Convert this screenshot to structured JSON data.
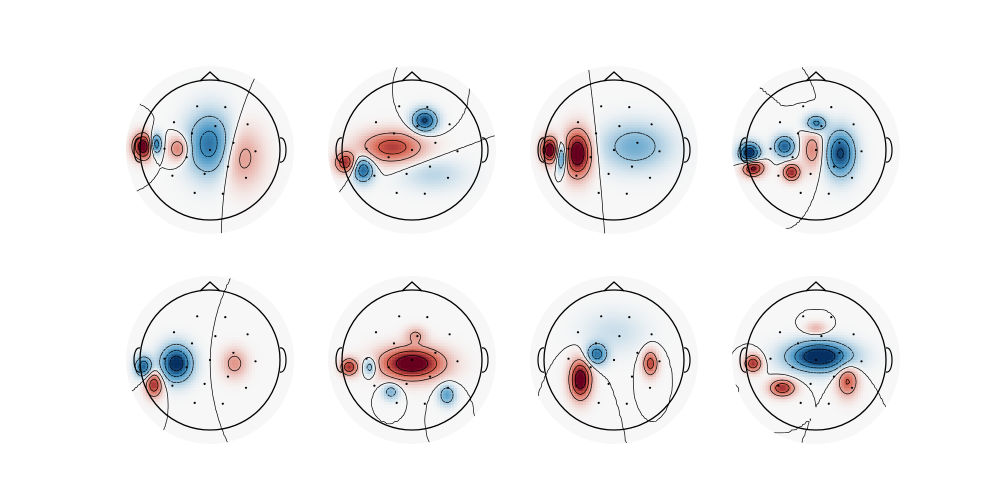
{
  "figure": {
    "background": "#ffffff"
  },
  "chart_data": {
    "type": "heatmap",
    "subtype": "eeg-topomap",
    "layout": {
      "rows": 2,
      "cols": 4
    },
    "colormap": {
      "negative": "#053061",
      "neutral": "#f7f7f7",
      "positive": "#67001f"
    },
    "contour_style": {
      "positive": "solid",
      "negative": "dashed",
      "color": "#000000"
    },
    "panels": [
      {
        "label": "",
        "blobs": [
          {
            "x": -0.95,
            "y": 0.05,
            "sx": 0.1,
            "sy": 0.12,
            "a": 1.2
          },
          {
            "x": -0.78,
            "y": 0.08,
            "sx": 0.06,
            "sy": 0.1,
            "a": -1.0
          },
          {
            "x": -0.45,
            "y": 0.02,
            "sx": 0.1,
            "sy": 0.12,
            "a": 0.55
          },
          {
            "x": 0.0,
            "y": 0.08,
            "sx": 0.22,
            "sy": 0.3,
            "a": -0.75
          },
          {
            "x": 0.45,
            "y": -0.1,
            "sx": 0.2,
            "sy": 0.28,
            "a": 0.4
          }
        ]
      },
      {
        "label": "",
        "blobs": [
          {
            "x": 0.18,
            "y": 0.42,
            "sx": 0.12,
            "sy": 0.11,
            "a": -0.95
          },
          {
            "x": -0.28,
            "y": 0.04,
            "sx": 0.3,
            "sy": 0.15,
            "a": 0.75
          },
          {
            "x": -0.7,
            "y": -0.28,
            "sx": 0.1,
            "sy": 0.12,
            "a": -0.85
          },
          {
            "x": -0.95,
            "y": -0.18,
            "sx": 0.1,
            "sy": 0.1,
            "a": 0.85
          },
          {
            "x": 0.3,
            "y": -0.35,
            "sx": 0.3,
            "sy": 0.15,
            "a": -0.2
          }
        ]
      },
      {
        "label": "",
        "blobs": [
          {
            "x": -0.52,
            "y": -0.05,
            "sx": 0.13,
            "sy": 0.22,
            "a": 1.2
          },
          {
            "x": -0.92,
            "y": 0.0,
            "sx": 0.08,
            "sy": 0.12,
            "a": 1.2
          },
          {
            "x": -0.75,
            "y": -0.1,
            "sx": 0.05,
            "sy": 0.14,
            "a": -0.9
          },
          {
            "x": 0.3,
            "y": 0.05,
            "sx": 0.32,
            "sy": 0.22,
            "a": -0.45
          }
        ]
      },
      {
        "label": "",
        "blobs": [
          {
            "x": 0.0,
            "y": 0.38,
            "sx": 0.1,
            "sy": 0.08,
            "a": -0.7
          },
          {
            "x": -0.45,
            "y": 0.05,
            "sx": 0.1,
            "sy": 0.1,
            "a": -0.85
          },
          {
            "x": -0.35,
            "y": -0.32,
            "sx": 0.08,
            "sy": 0.08,
            "a": 0.9
          },
          {
            "x": -0.05,
            "y": 0.0,
            "sx": 0.1,
            "sy": 0.18,
            "a": 0.45
          },
          {
            "x": 0.35,
            "y": -0.05,
            "sx": 0.14,
            "sy": 0.22,
            "a": -0.95
          },
          {
            "x": -0.95,
            "y": -0.05,
            "sx": 0.1,
            "sy": 0.1,
            "a": -1.2
          },
          {
            "x": -0.9,
            "y": -0.25,
            "sx": 0.1,
            "sy": 0.08,
            "a": 1.1
          }
        ]
      },
      {
        "label": "",
        "blobs": [
          {
            "x": -0.48,
            "y": -0.05,
            "sx": 0.15,
            "sy": 0.17,
            "a": -1.1
          },
          {
            "x": -0.8,
            "y": -0.35,
            "sx": 0.08,
            "sy": 0.12,
            "a": 0.85
          },
          {
            "x": -0.95,
            "y": -0.1,
            "sx": 0.08,
            "sy": 0.1,
            "a": -0.85
          },
          {
            "x": 0.35,
            "y": -0.05,
            "sx": 0.12,
            "sy": 0.14,
            "a": 0.4
          }
        ]
      },
      {
        "label": "",
        "blobs": [
          {
            "x": 0.0,
            "y": -0.05,
            "sx": 0.3,
            "sy": 0.15,
            "a": 1.2
          },
          {
            "x": -0.3,
            "y": -0.45,
            "sx": 0.08,
            "sy": 0.08,
            "a": -0.45
          },
          {
            "x": 0.5,
            "y": -0.5,
            "sx": 0.08,
            "sy": 0.1,
            "a": -0.55
          },
          {
            "x": -0.9,
            "y": -0.1,
            "sx": 0.08,
            "sy": 0.08,
            "a": 0.85
          },
          {
            "x": -0.6,
            "y": -0.1,
            "sx": 0.06,
            "sy": 0.08,
            "a": -0.55
          },
          {
            "x": 0.05,
            "y": 0.35,
            "sx": 0.1,
            "sy": 0.08,
            "a": 0.35
          }
        ]
      },
      {
        "label": "",
        "blobs": [
          {
            "x": -0.48,
            "y": -0.28,
            "sx": 0.1,
            "sy": 0.18,
            "a": 1.2
          },
          {
            "x": -0.25,
            "y": 0.08,
            "sx": 0.1,
            "sy": 0.1,
            "a": -0.75
          },
          {
            "x": 0.52,
            "y": -0.05,
            "sx": 0.07,
            "sy": 0.12,
            "a": 0.75
          },
          {
            "x": 0.0,
            "y": 0.4,
            "sx": 0.3,
            "sy": 0.2,
            "a": -0.15
          }
        ]
      },
      {
        "label": "",
        "blobs": [
          {
            "x": 0.05,
            "y": 0.05,
            "sx": 0.3,
            "sy": 0.14,
            "a": -1.2
          },
          {
            "x": -0.48,
            "y": -0.4,
            "sx": 0.12,
            "sy": 0.08,
            "a": 0.85
          },
          {
            "x": 0.45,
            "y": -0.3,
            "sx": 0.1,
            "sy": 0.15,
            "a": 0.65
          },
          {
            "x": -0.9,
            "y": -0.05,
            "sx": 0.08,
            "sy": 0.08,
            "a": 0.85
          },
          {
            "x": 0.0,
            "y": 0.45,
            "sx": 0.1,
            "sy": 0.06,
            "a": 0.3
          }
        ]
      }
    ]
  }
}
